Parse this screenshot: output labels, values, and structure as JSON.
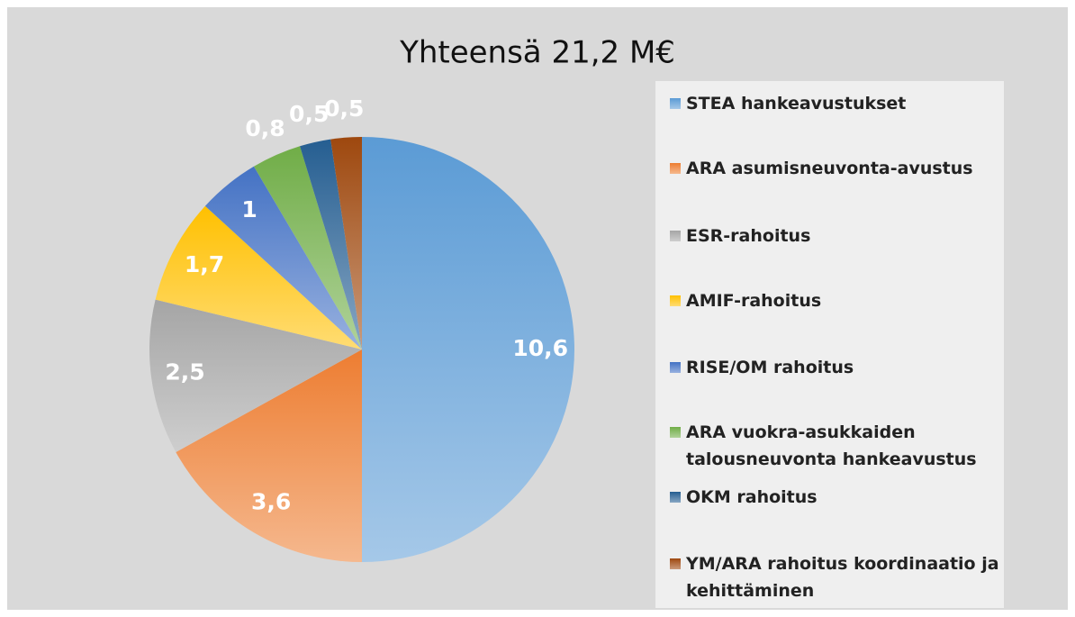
{
  "chart_data": {
    "type": "pie",
    "title": "Yhteensä 21,2 M€",
    "categories": [
      "STEA hankeavustukset",
      "ARA asumisneuvonta-avustus",
      "ESR-rahoitus",
      "AMIF-rahoitus",
      "RISE/OM rahoitus",
      "ARA vuokra-asukkaiden talousneuvonta hankeavustus",
      "OKM rahoitus",
      "YM/ARA rahoitus koordinaatio ja kehittäminen"
    ],
    "values": [
      10.6,
      3.6,
      2.5,
      1.7,
      1,
      0.8,
      0.5,
      0.5
    ],
    "value_labels": [
      "10,6",
      "3,6",
      "2,5",
      "1,7",
      "1",
      "0,8",
      "0,5",
      "0,5"
    ],
    "colors": [
      "#5b9bd5",
      "#ed7d31",
      "#a5a5a5",
      "#ffc000",
      "#4472c4",
      "#70ad47",
      "#255e91",
      "#9e480e"
    ],
    "legend": "right"
  }
}
